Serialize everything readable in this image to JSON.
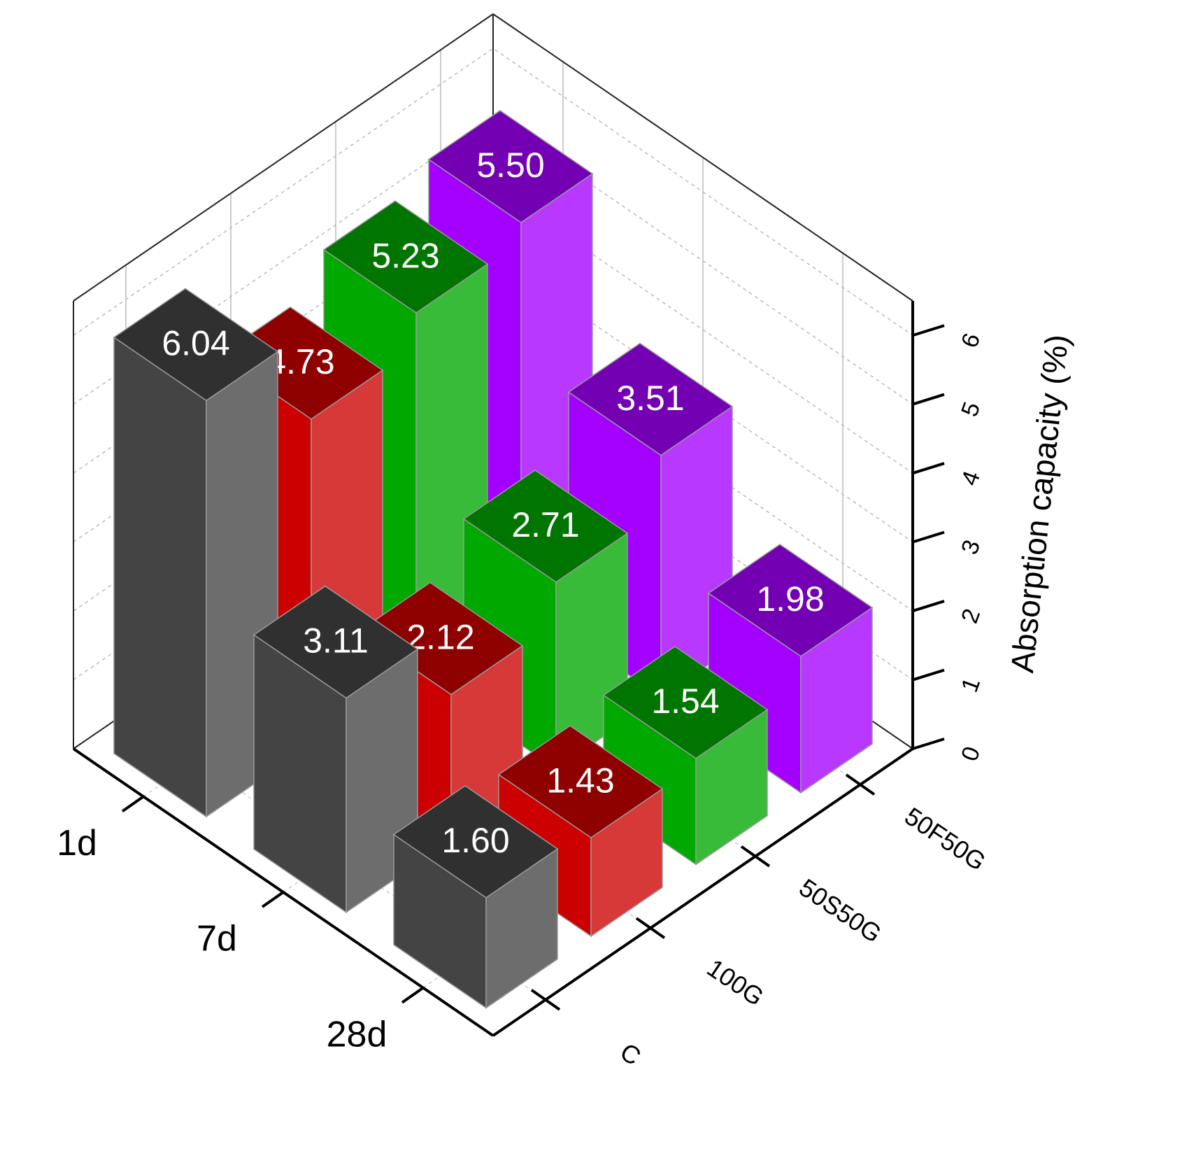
{
  "chart_data": {
    "type": "bar3d",
    "categories": [
      "1d",
      "7d",
      "28d"
    ],
    "series": [
      {
        "name": "C",
        "color": "#444444",
        "values": [
          6.04,
          3.11,
          1.6
        ],
        "value_labels": [
          "6.04",
          "3.11",
          "1.60"
        ]
      },
      {
        "name": "100G",
        "color": "#cc0000",
        "values": [
          4.73,
          2.12,
          1.43
        ],
        "value_labels": [
          "4.73",
          "2.12",
          "1.43"
        ]
      },
      {
        "name": "50S50G",
        "color": "#00a800",
        "values": [
          5.23,
          2.71,
          1.54
        ],
        "value_labels": [
          "5.23",
          "2.71",
          "1.54"
        ]
      },
      {
        "name": "50F50G",
        "color": "#a400ff",
        "values": [
          5.5,
          3.51,
          1.98
        ],
        "value_labels": [
          "5.50",
          "3.51",
          "1.98"
        ]
      }
    ],
    "zlabel": "Absorption capacity (%)",
    "zlim": [
      0,
      6.5
    ],
    "zticks": [
      0,
      1,
      2,
      3,
      4,
      5,
      6
    ],
    "grid": true
  }
}
